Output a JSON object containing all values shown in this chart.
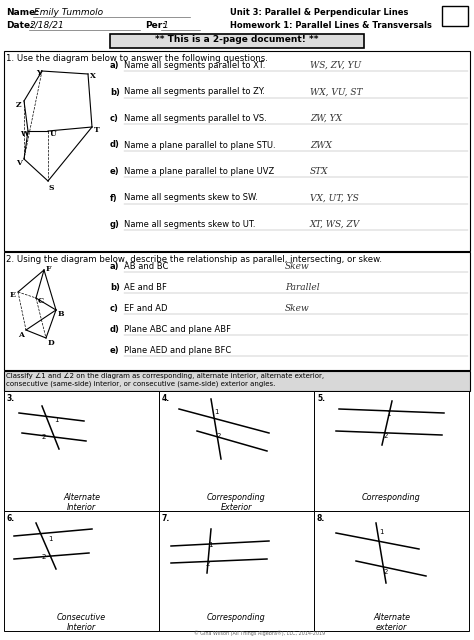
{
  "bg_color": "#ffffff",
  "title_box_text": "** This is a 2-page document! **",
  "header": {
    "name_label": "Name:",
    "name_value": "Emily Tummolo",
    "date_label": "Date:",
    "date_value": "2/18/21",
    "per_label": "Per:",
    "per_value": "1",
    "unit_text": "Unit 3: Parallel & Perpendicular Lines",
    "hw_text": "Homework 1: Parallel Lines & Transversals"
  },
  "q1_text": "1. Use the diagram below to answer the following questions.",
  "q1_parts": [
    {
      "letter": "a)",
      "text": "Name all segments parallel to XT.  ",
      "answer": "WS, ZV, YU"
    },
    {
      "letter": "b)",
      "text": "Name all segments parallel to ZY.  ",
      "answer": "WX, VU, ST"
    },
    {
      "letter": "c)",
      "text": "Name all segments parallel to VS.  ",
      "answer": "ZW, YX"
    },
    {
      "letter": "d)",
      "text": "Name a plane parallel to plane STU.  ",
      "answer": "ZWX"
    },
    {
      "letter": "e)",
      "text": "Name a plane parallel to plane UVZ  ",
      "answer": "STX"
    },
    {
      "letter": "f)",
      "text": "Name all segments skew to SW.  ",
      "answer": "VX, UT, YS"
    },
    {
      "letter": "g)",
      "text": "Name all segments skew to UT.  ",
      "answer": "XT, WS, ZV"
    }
  ],
  "q2_text": "2. Using the diagram below, describe the relationship as parallel, intersecting, or skew.",
  "q2_parts": [
    {
      "letter": "a)",
      "text": "AB and BC  ",
      "answer": "Skew"
    },
    {
      "letter": "b)",
      "text": "AE and BF  ",
      "answer": "Parallel"
    },
    {
      "letter": "c)",
      "text": "EF and AD  ",
      "answer": "Skew"
    },
    {
      "letter": "d)",
      "text": "Plane ABC and plane ABF  ",
      "answer": ""
    },
    {
      "letter": "e)",
      "text": "Plane AED and plane BFC  ",
      "answer": ""
    }
  ],
  "q3_text": "Classify ∠1 and ∠2 on the diagram as corresponding, alternate interior, alternate exterior,\nconsecutive (same-side) interior, or consecutive (same-side) exterior angles.",
  "grid_labels": [
    {
      "num": "3.",
      "label": "Alternate\nInterior"
    },
    {
      "num": "4.",
      "label": "Corresponding\nExterior"
    },
    {
      "num": "5.",
      "label": "Corresponding"
    },
    {
      "num": "6.",
      "label": "Consecutive\nInterior"
    },
    {
      "num": "7.",
      "label": "Corresponding"
    },
    {
      "num": "8.",
      "label": "Alternate\nexterior"
    }
  ],
  "copyright": "© Gina Wilson (All Things Algebra®), LLC, 2014-2019"
}
